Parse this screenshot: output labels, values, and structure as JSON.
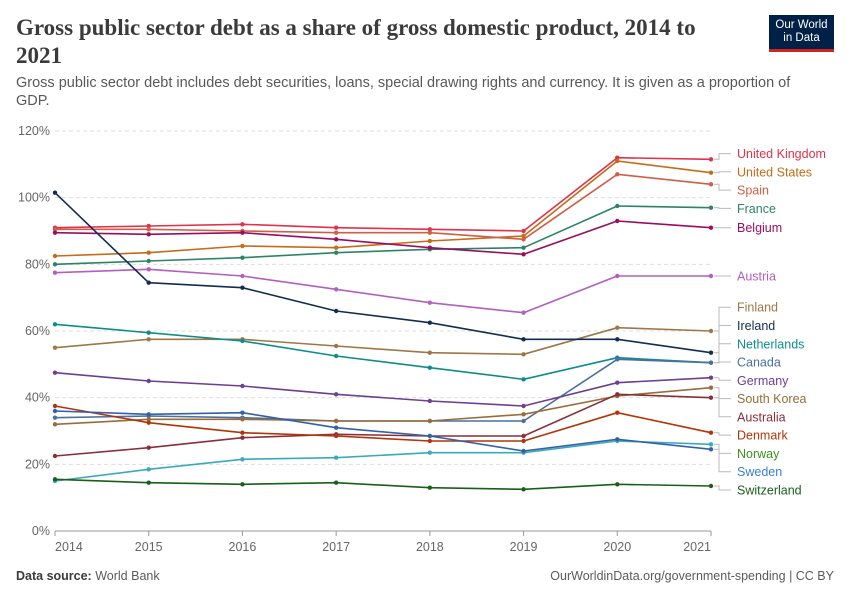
{
  "title": "Gross public sector debt as a share of gross domestic product, 2014 to 2021",
  "subtitle": "Gross public sector debt includes debt securities, loans, special drawing rights and currency. It is given as a proportion of GDP.",
  "logo": {
    "line1": "Our World",
    "line2": "in Data"
  },
  "footer": {
    "source_label": "Data source:",
    "source": "World Bank",
    "url": "OurWorldinData.org/government-spending | CC BY"
  },
  "chart_data": {
    "type": "line",
    "title": "Gross public sector debt as a share of gross domestic product, 2014 to 2021",
    "x": [
      2014,
      2015,
      2016,
      2017,
      2018,
      2019,
      2020,
      2021
    ],
    "x_tick_labels": [
      "2014",
      "2015",
      "2016",
      "2017",
      "2018",
      "2019",
      "2020",
      "2021"
    ],
    "ylim": [
      0,
      120
    ],
    "y_ticks": [
      0,
      20,
      40,
      60,
      80,
      100,
      120
    ],
    "y_tick_labels": [
      "0%",
      "20%",
      "40%",
      "60%",
      "80%",
      "100%",
      "120%"
    ],
    "grid": true,
    "legend": "right (direct labels)",
    "series": [
      {
        "name": "United Kingdom",
        "color": "#e2314a",
        "values": [
          91,
          91.5,
          92,
          91,
          90.5,
          90,
          112,
          111.5
        ]
      },
      {
        "name": "United States",
        "color": "#c66b17",
        "values": [
          82.5,
          83.5,
          85.5,
          85,
          87,
          88.5,
          111,
          107.5
        ]
      },
      {
        "name": "Spain",
        "color": "#d05e44",
        "values": [
          90.5,
          90.5,
          90,
          89.5,
          89.5,
          87.5,
          107,
          104
        ]
      },
      {
        "name": "France",
        "color": "#2c8465",
        "values": [
          80,
          81,
          82,
          83.5,
          84.5,
          85,
          97.5,
          97
        ]
      },
      {
        "name": "Belgium",
        "color": "#9a0e5f",
        "values": [
          89.5,
          89,
          89.5,
          87.5,
          85,
          83,
          93,
          91
        ]
      },
      {
        "name": "Austria",
        "color": "#b25fbf",
        "values": [
          77.5,
          78.5,
          76.5,
          72.5,
          68.5,
          65.5,
          76.5,
          76.5
        ]
      },
      {
        "name": "Finland",
        "color": "#9e7747",
        "values": [
          55,
          57.5,
          57.5,
          55.5,
          53.5,
          53,
          61,
          60
        ]
      },
      {
        "name": "Ireland",
        "color": "#112d52",
        "values": [
          101.5,
          74.5,
          73,
          66,
          62.5,
          57.5,
          57.5,
          53.5
        ]
      },
      {
        "name": "Netherlands",
        "color": "#0e8c8c",
        "values": [
          62,
          59.5,
          57,
          52.5,
          49,
          45.5,
          52,
          50.5
        ]
      },
      {
        "name": "Canada",
        "color": "#4a6fa0",
        "values": [
          34,
          34.5,
          34,
          33,
          33,
          33,
          51.5,
          50.5
        ]
      },
      {
        "name": "Germany",
        "color": "#6d3e91",
        "values": [
          47.5,
          45,
          43.5,
          41,
          39,
          37.5,
          44.5,
          46
        ]
      },
      {
        "name": "South Korea",
        "color": "#986d39",
        "values": [
          32,
          33.5,
          33.5,
          33,
          33,
          35,
          40.5,
          43
        ]
      },
      {
        "name": "Australia",
        "color": "#883039",
        "values": [
          22.5,
          25,
          28,
          29,
          28.5,
          28.5,
          41,
          40
        ]
      },
      {
        "name": "Denmark",
        "color": "#b13507",
        "values": [
          37.5,
          32.5,
          29.5,
          28.5,
          27,
          27,
          35.5,
          29.5
        ]
      },
      {
        "name": "Norway",
        "color": "#38aaba",
        "values": [
          15,
          18.5,
          21.5,
          22,
          23.5,
          23.5,
          27,
          26
        ]
      },
      {
        "name": "Sweden",
        "color": "#3360a9",
        "values": [
          36,
          35,
          35.5,
          31,
          28.5,
          24,
          27.5,
          24.5
        ]
      },
      {
        "name": "Switzerland",
        "color": "#1a5e1a",
        "values": [
          15.5,
          14.5,
          14,
          14.5,
          13,
          12.5,
          14,
          13.5
        ]
      }
    ]
  },
  "label_colors": {
    "United Kingdom": "#e2314a",
    "Norway": "#3f8f22",
    "Sweden": "#3a81d6"
  }
}
